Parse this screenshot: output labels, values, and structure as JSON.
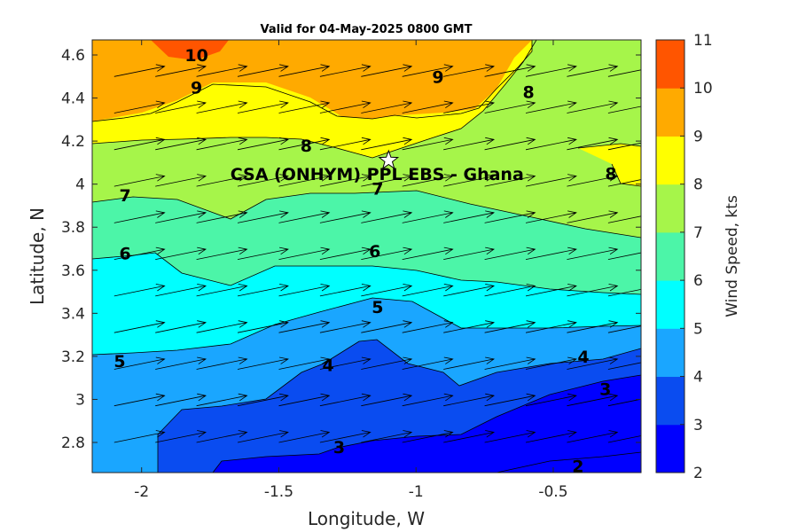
{
  "chart_data": {
    "type": "contour",
    "title": "Valid for 04-May-2025 0800 GMT",
    "xlabel": "Longitude, W",
    "ylabel": "Latitude, N",
    "colorbar_label": "Wind Speed, kts",
    "xlim": [
      -2.18,
      -0.18
    ],
    "ylim": [
      2.66,
      4.67
    ],
    "x_ticks": [
      -2,
      -1.5,
      -1,
      -0.5
    ],
    "x_tick_labels": [
      "-2",
      "-1.5",
      "-1",
      "-0.5"
    ],
    "y_ticks": [
      2.8,
      3.0,
      3.2,
      3.4,
      3.6,
      3.8,
      4.0,
      4.2,
      4.4,
      4.6
    ],
    "y_tick_labels": [
      "2.8",
      "3",
      "3.2",
      "3.4",
      "3.6",
      "3.8",
      "4",
      "4.2",
      "4.4",
      "4.6"
    ],
    "colorbar": {
      "levels": [
        2,
        3,
        4,
        5,
        6,
        7,
        8,
        9,
        10,
        11
      ],
      "tick_labels": [
        "2",
        "3",
        "4",
        "5",
        "6",
        "7",
        "8",
        "9",
        "10",
        "11"
      ],
      "colors": [
        "#0000ff",
        "#0a4cf0",
        "#1aa6ff",
        "#00ffff",
        "#4cf5a8",
        "#a6f54a",
        "#ffff00",
        "#ffaa00",
        "#ff5500"
      ]
    },
    "site": {
      "label": "CSA (ONHYM) PPL EBS  - Ghana",
      "lon": -1.1,
      "lat": 4.11,
      "marker": "star"
    },
    "contour_labels": [
      {
        "text": "10",
        "lon": -1.8,
        "lat": 4.6
      },
      {
        "text": "9",
        "lon": -1.8,
        "lat": 4.45
      },
      {
        "text": "9",
        "lon": -0.92,
        "lat": 4.5
      },
      {
        "text": "8",
        "lon": -0.59,
        "lat": 4.43
      },
      {
        "text": "8",
        "lon": -1.4,
        "lat": 4.18
      },
      {
        "text": "8",
        "lon": -0.29,
        "lat": 4.05
      },
      {
        "text": "7",
        "lon": -2.06,
        "lat": 3.95
      },
      {
        "text": "7",
        "lon": -1.14,
        "lat": 3.98
      },
      {
        "text": "6",
        "lon": -2.06,
        "lat": 3.68
      },
      {
        "text": "6",
        "lon": -1.15,
        "lat": 3.69
      },
      {
        "text": "5",
        "lon": -1.14,
        "lat": 3.43
      },
      {
        "text": "5",
        "lon": -2.08,
        "lat": 3.18
      },
      {
        "text": "4",
        "lon": -1.32,
        "lat": 3.16
      },
      {
        "text": "4",
        "lon": -0.39,
        "lat": 3.2
      },
      {
        "text": "3",
        "lon": -0.31,
        "lat": 3.05
      },
      {
        "text": "3",
        "lon": -1.28,
        "lat": 2.78
      },
      {
        "text": "2",
        "lon": -0.41,
        "lat": 2.69
      }
    ],
    "wind_field": {
      "description": "uniform arrows pointing east-northeast",
      "lons": [
        -2.1,
        -1.95,
        -1.8,
        -1.65,
        -1.5,
        -1.35,
        -1.2,
        -1.05,
        -0.9,
        -0.75,
        -0.6,
        -0.45,
        -0.3
      ],
      "lats": [
        2.8,
        2.97,
        3.14,
        3.31,
        3.48,
        3.65,
        3.82,
        3.99,
        4.16,
        4.33,
        4.5
      ]
    }
  }
}
